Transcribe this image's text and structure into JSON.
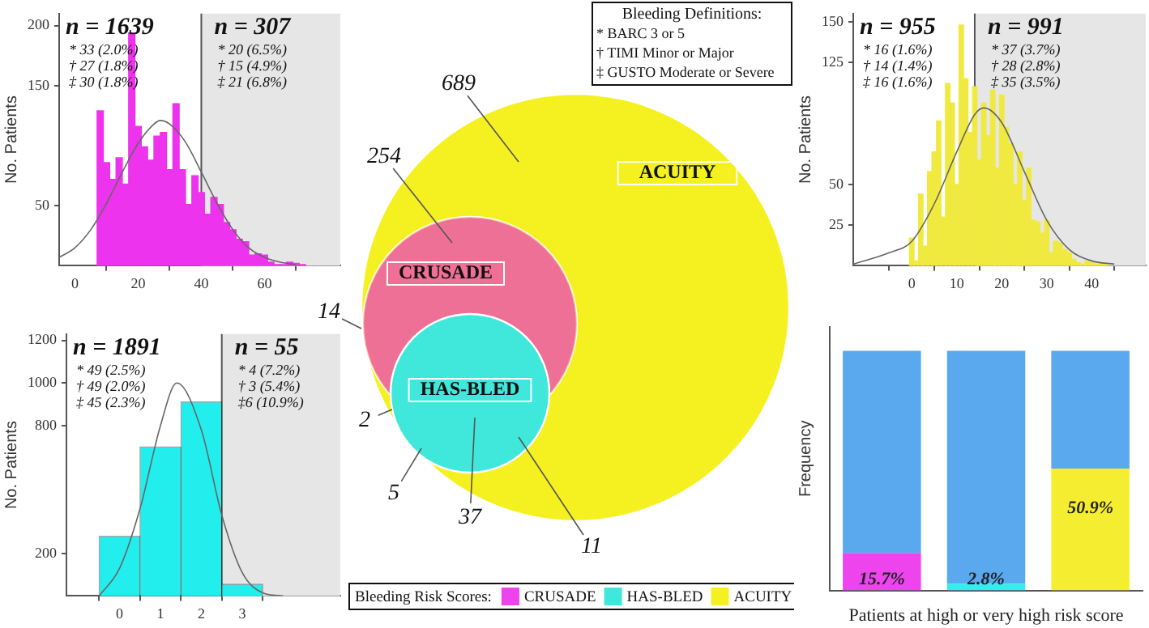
{
  "chart_data": [
    {
      "type": "histogram",
      "ylabel": "No. Patients",
      "color": "#ee33ee",
      "bins": [
        7,
        9,
        11,
        13,
        15,
        17,
        19,
        21,
        23,
        25,
        27,
        29,
        31,
        33,
        35,
        37,
        39,
        41,
        43,
        45,
        47,
        49,
        51,
        53,
        55,
        57,
        59,
        61,
        63,
        65,
        67,
        69,
        71,
        73
      ],
      "values": [
        129,
        86,
        72,
        90,
        68,
        194,
        116,
        99,
        88,
        108,
        111,
        80,
        135,
        80,
        51,
        75,
        61,
        43,
        57,
        51,
        36,
        30,
        22,
        20,
        9,
        10,
        9,
        3,
        1,
        1,
        3,
        2,
        1
      ],
      "series": [
        {
          "type": "line",
          "color": "#666666",
          "x": [
            -5,
            0,
            5,
            10,
            15,
            20,
            25,
            27,
            30,
            35,
            40,
            45,
            50,
            55,
            60,
            65,
            70
          ],
          "values": [
            7,
            15,
            30,
            52,
            78,
            102,
            118,
            121,
            118,
            103,
            78,
            52,
            30,
            15,
            7,
            3,
            1
          ]
        }
      ],
      "xlim": [
        -5,
        84
      ],
      "xticks": [
        0,
        20,
        40,
        60
      ],
      "ylim": [
        0,
        210
      ],
      "yticks": [
        50,
        150,
        200
      ],
      "bands": [
        {
          "axis": "x",
          "from": 40,
          "to": 84,
          "color": "#e6e6e6"
        }
      ],
      "ref_lines": [
        {
          "axis": "x",
          "value": 40,
          "color": "#555555"
        }
      ],
      "annotations": [
        "n = 1639",
        "* 33 (2.0%)",
        "† 27 (1.8%)",
        "‡ 30 (1.8%)",
        "n = 307",
        "* 20 (6.5%)",
        "† 15 (4.9%)",
        "‡ 21 (6.8%)"
      ]
    },
    {
      "type": "other",
      "series": [
        {
          "name": "CRUSADE",
          "color": "#ee44ee"
        },
        {
          "name": "HAS-BLED",
          "color": "#40e8dc"
        },
        {
          "name": "ACUITY",
          "color": "#f5f020"
        }
      ],
      "legend": "bottom",
      "legend_title": "Bleeding Risk Scores:",
      "annotations": [
        "689",
        "254",
        "14",
        "2",
        "5",
        "37",
        "11",
        "Bleeding Definitions:",
        "* BARC 3 or 5",
        "† TIMI Minor or Major",
        "‡ GUSTO Moderate or Severe"
      ]
    },
    {
      "type": "histogram",
      "ylabel": "No. Patients",
      "color": "#f0ea40",
      "bins": [
        -0.5,
        0.5,
        1.5,
        2.5,
        3.5,
        4.5,
        5.5,
        6.5,
        7.5,
        8.5,
        9.5,
        10.5,
        11.5,
        12.5,
        13.5,
        14.5,
        15.5,
        16.5,
        17.5,
        18.5,
        19.5,
        20.5,
        21.5,
        22.5,
        23.5,
        24.5,
        25.5,
        26.5,
        27.5,
        28.5,
        29.5,
        30.5,
        31.5,
        32.5,
        33.5,
        34.5,
        35.5,
        36.5,
        37.5,
        38.5,
        39.5,
        40.5,
        41.5,
        42.5,
        43.5
      ],
      "values": [
        17,
        3,
        44,
        12,
        58,
        70,
        89,
        30,
        112,
        100,
        50,
        148,
        115,
        82,
        110,
        65,
        100,
        80,
        108,
        60,
        105,
        85,
        75,
        50,
        70,
        40,
        60,
        28,
        27,
        20,
        28,
        8,
        15,
        14,
        10,
        8,
        4,
        2,
        1,
        3,
        2,
        1,
        2,
        1
      ],
      "series": [
        {
          "type": "line",
          "color": "#666666",
          "x": [
            -13,
            -5,
            0,
            5,
            10,
            14,
            16,
            20,
            25,
            30,
            35,
            40,
            45
          ],
          "values": [
            1,
            8,
            15,
            38,
            70,
            93,
            97,
            88,
            58,
            28,
            10,
            3,
            1
          ]
        }
      ],
      "xlim": [
        -13,
        52
      ],
      "xticks": [
        0,
        10,
        20,
        30,
        40
      ],
      "ylim": [
        0,
        155
      ],
      "yticks": [
        25,
        50,
        125,
        150
      ],
      "bands": [
        {
          "axis": "x",
          "from": 14,
          "to": 52,
          "color": "#e6e6e6"
        }
      ],
      "ref_lines": [
        {
          "axis": "x",
          "value": 14,
          "color": "#555555"
        }
      ],
      "annotations": [
        "n = 955",
        "* 16 (1.6%)",
        "† 14 (1.4%)",
        "‡ 16 (1.6%)",
        "n = 991",
        "* 37 (3.7%)",
        "† 28 (2.8%)",
        "‡ 35 (3.5%)"
      ]
    },
    {
      "type": "histogram",
      "ylabel": "No. Patients",
      "color": "#22eeee",
      "bins": [
        -0.5,
        0.5,
        1.5,
        2.5,
        3.5
      ],
      "values": [
        280,
        700,
        911,
        55
      ],
      "series": [
        {
          "type": "line",
          "color": "#666666",
          "x": [
            -0.5,
            0,
            0.5,
            1,
            1.4,
            2,
            2.5,
            3,
            3.5,
            4
          ],
          "values": [
            0,
            130,
            410,
            800,
            1000,
            780,
            380,
            110,
            15,
            0
          ]
        }
      ],
      "xlim": [
        -1.3,
        5.4
      ],
      "xticks": [
        0,
        1,
        2,
        3
      ],
      "ylim": [
        0,
        1230
      ],
      "yticks": [
        200,
        800,
        1000,
        1200
      ],
      "bands": [
        {
          "axis": "x",
          "from": 2.5,
          "to": 5.4,
          "color": "#e6e6e6"
        }
      ],
      "ref_lines": [
        {
          "axis": "x",
          "value": 2.5,
          "color": "#555555"
        }
      ],
      "annotations": [
        "n = 1891",
        "* 49 (2.5%)",
        "† 49 (2.0%)",
        "‡ 45 (2.3%)",
        "n = 55",
        "* 4 (7.2%)",
        "† 3 (5.4%)",
        "‡6 (10.9%)"
      ]
    },
    {
      "type": "bar",
      "stacked": true,
      "ylim": [
        0,
        110
      ],
      "tick_labels": false,
      "xlabel": "Patients at high or very high risk score",
      "ylabel": "Frequency",
      "categories": [
        null,
        null,
        null
      ],
      "series": [
        {
          "colors": [
            "#ee44ee",
            "#33eeee",
            "#f5ee30"
          ],
          "values": [
            15.7,
            2.8,
            50.9
          ],
          "value_labels": [
            "15.7%",
            "2.8%",
            "50.9%"
          ]
        },
        {
          "color": "#5aa8ee",
          "values": [
            84.3,
            97.2,
            49.1
          ]
        }
      ]
    }
  ]
}
